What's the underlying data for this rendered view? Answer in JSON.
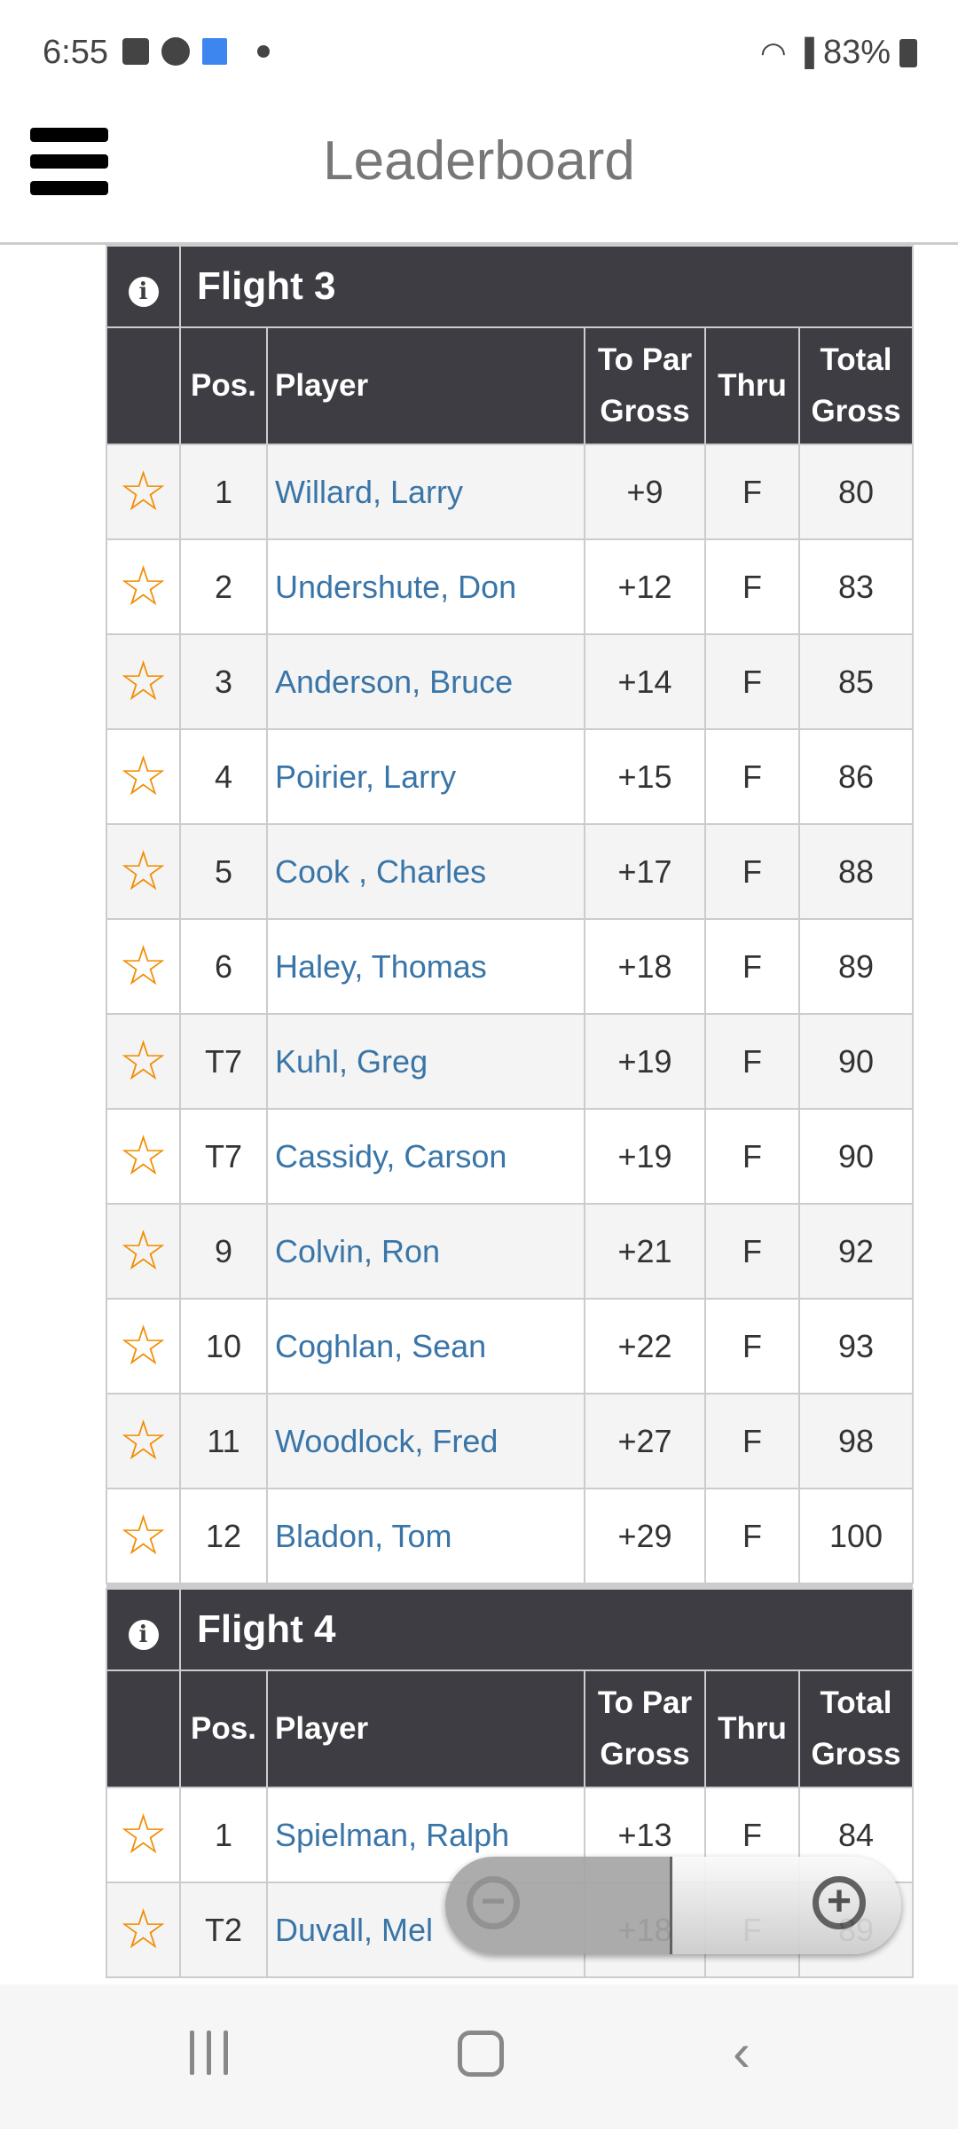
{
  "status": {
    "time": "6:55",
    "battery": "83%",
    "icons": [
      "gallery-icon",
      "messenger-icon",
      "cake-icon",
      "dot-icon",
      "wifi-icon",
      "signal-icon",
      "battery-icon"
    ]
  },
  "header": {
    "title": "Leaderboard"
  },
  "columns": {
    "pos": "Pos.",
    "player": "Player",
    "to_par": "To Par Gross",
    "thru": "Thru",
    "total": "Total Gross"
  },
  "colors": {
    "header_bg": "#3e3d43",
    "link": "#3a75a8",
    "star": "#f28c00"
  },
  "flights": [
    {
      "title": "Flight 3",
      "rows": [
        {
          "pos": "1",
          "player": "Willard, Larry",
          "to_par": "+9",
          "thru": "F",
          "total": "80"
        },
        {
          "pos": "2",
          "player": "Undershute, Don",
          "to_par": "+12",
          "thru": "F",
          "total": "83"
        },
        {
          "pos": "3",
          "player": "Anderson, Bruce",
          "to_par": "+14",
          "thru": "F",
          "total": "85"
        },
        {
          "pos": "4",
          "player": "Poirier, Larry",
          "to_par": "+15",
          "thru": "F",
          "total": "86"
        },
        {
          "pos": "5",
          "player": "Cook , Charles",
          "to_par": "+17",
          "thru": "F",
          "total": "88"
        },
        {
          "pos": "6",
          "player": "Haley, Thomas",
          "to_par": "+18",
          "thru": "F",
          "total": "89"
        },
        {
          "pos": "T7",
          "player": "Kuhl, Greg",
          "to_par": "+19",
          "thru": "F",
          "total": "90"
        },
        {
          "pos": "T7",
          "player": "Cassidy, Carson",
          "to_par": "+19",
          "thru": "F",
          "total": "90"
        },
        {
          "pos": "9",
          "player": "Colvin, Ron",
          "to_par": "+21",
          "thru": "F",
          "total": "92"
        },
        {
          "pos": "10",
          "player": "Coghlan, Sean",
          "to_par": "+22",
          "thru": "F",
          "total": "93"
        },
        {
          "pos": "11",
          "player": "Woodlock, Fred",
          "to_par": "+27",
          "thru": "F",
          "total": "98"
        },
        {
          "pos": "12",
          "player": "Bladon, Tom",
          "to_par": "+29",
          "thru": "F",
          "total": "100"
        }
      ]
    },
    {
      "title": "Flight 4",
      "rows": [
        {
          "pos": "1",
          "player": "Spielman, Ralph",
          "to_par": "+13",
          "thru": "F",
          "total": "84"
        },
        {
          "pos": "T2",
          "player": "Duvall, Mel",
          "to_par": "+18",
          "thru": "F",
          "total": "89"
        }
      ]
    }
  ]
}
